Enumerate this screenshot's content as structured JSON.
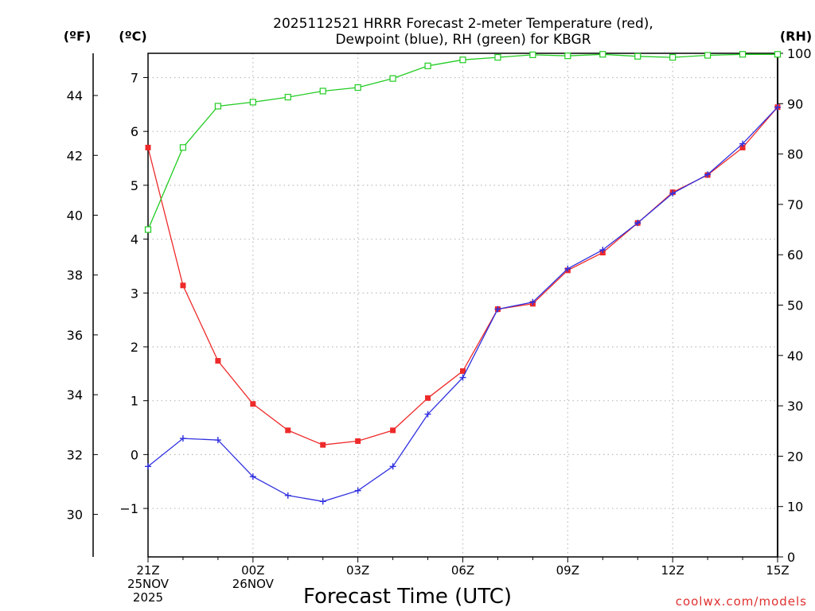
{
  "chart_data": {
    "type": "line",
    "title_line1": "2025112521 HRRR Forecast 2-meter Temperature (red),",
    "title_line2": "Dewpoint (blue), RH (green) for KBGR",
    "xlabel": "Forecast Time (UTC)",
    "credit": "coolwx.com/models",
    "units": {
      "fahrenheit": "(ºF)",
      "celsius": "(ºC)",
      "rh": "(RH)"
    },
    "x_hours": [
      0,
      1,
      2,
      3,
      4,
      5,
      6,
      7,
      8,
      9,
      10,
      11,
      12,
      13,
      14,
      15,
      16,
      17,
      18
    ],
    "xlim": [
      0,
      18
    ],
    "x_ticks": [
      {
        "hour": 0,
        "lines": [
          "21Z",
          "25NOV",
          "2025"
        ]
      },
      {
        "hour": 3,
        "lines": [
          "00Z",
          "26NOV"
        ]
      },
      {
        "hour": 6,
        "lines": [
          "03Z"
        ]
      },
      {
        "hour": 9,
        "lines": [
          "06Z"
        ]
      },
      {
        "hour": 12,
        "lines": [
          "09Z"
        ]
      },
      {
        "hour": 15,
        "lines": [
          "12Z"
        ]
      },
      {
        "hour": 18,
        "lines": [
          "15Z"
        ]
      }
    ],
    "celsius_axis": {
      "ylim": [
        -1.9,
        7.45
      ],
      "ticks": [
        -1,
        0,
        1,
        2,
        3,
        4,
        5,
        6,
        7
      ]
    },
    "fahrenheit_axis": {
      "ticks": [
        30,
        32,
        34,
        36,
        38,
        40,
        42,
        44
      ]
    },
    "rh_axis": {
      "ylim": [
        0,
        100
      ],
      "ticks": [
        0,
        10,
        20,
        30,
        40,
        50,
        60,
        70,
        80,
        90,
        100
      ]
    },
    "grid": true,
    "series": [
      {
        "name": "2-meter Temperature",
        "units": "C",
        "color": "#ee2a2a",
        "marker": "filled-square",
        "values": [
          5.7,
          3.14,
          1.74,
          0.94,
          0.45,
          0.18,
          0.25,
          0.45,
          1.05,
          1.55,
          2.7,
          2.8,
          3.42,
          3.75,
          4.3,
          4.87,
          5.19,
          5.7,
          6.45
        ]
      },
      {
        "name": "Dewpoint",
        "units": "C",
        "color": "#3030e0",
        "marker": "plus",
        "values": [
          -0.22,
          0.3,
          0.27,
          -0.41,
          -0.76,
          -0.87,
          -0.67,
          -0.22,
          0.75,
          1.43,
          2.7,
          2.83,
          3.45,
          3.8,
          4.3,
          4.85,
          5.2,
          5.77,
          6.45
        ]
      },
      {
        "name": "RH",
        "units": "%",
        "color": "#22cc22",
        "marker": "open-square",
        "values": [
          65,
          81.3,
          89.5,
          90.3,
          91.3,
          92.5,
          93.2,
          95,
          97.5,
          98.7,
          99.2,
          99.7,
          99.5,
          99.8,
          99.4,
          99.2,
          99.6,
          99.8,
          99.8
        ]
      }
    ]
  }
}
